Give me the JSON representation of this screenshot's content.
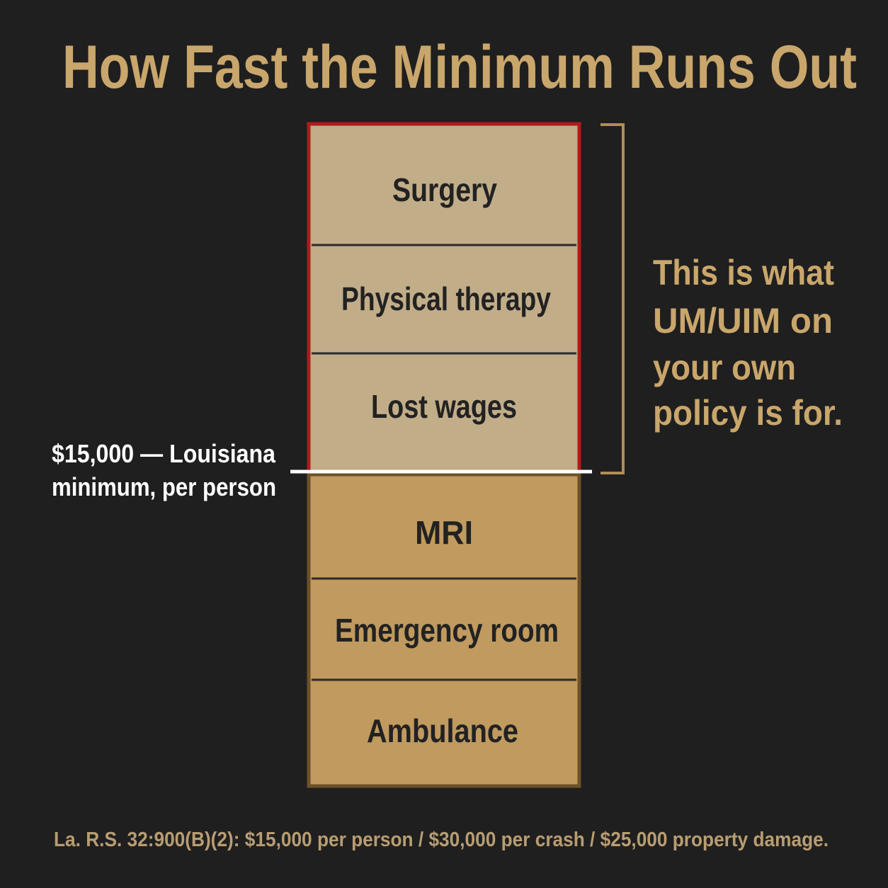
{
  "title": "How Fast the Minimum Runs Out",
  "above_limit": [
    "Surgery",
    "Physical therapy",
    "Lost wages"
  ],
  "below_limit": [
    "MRI",
    "Emergency room",
    "Ambulance"
  ],
  "threshold_label": [
    "$15,000 — Louisiana",
    "minimum, per person"
  ],
  "side_note": [
    "This is what",
    "UM/UIM on",
    "your own",
    "policy is for."
  ],
  "footer": "La. R.S. 32:900(B)(2): $15,000 per person / $30,000 per crash / $25,000 property damage."
}
